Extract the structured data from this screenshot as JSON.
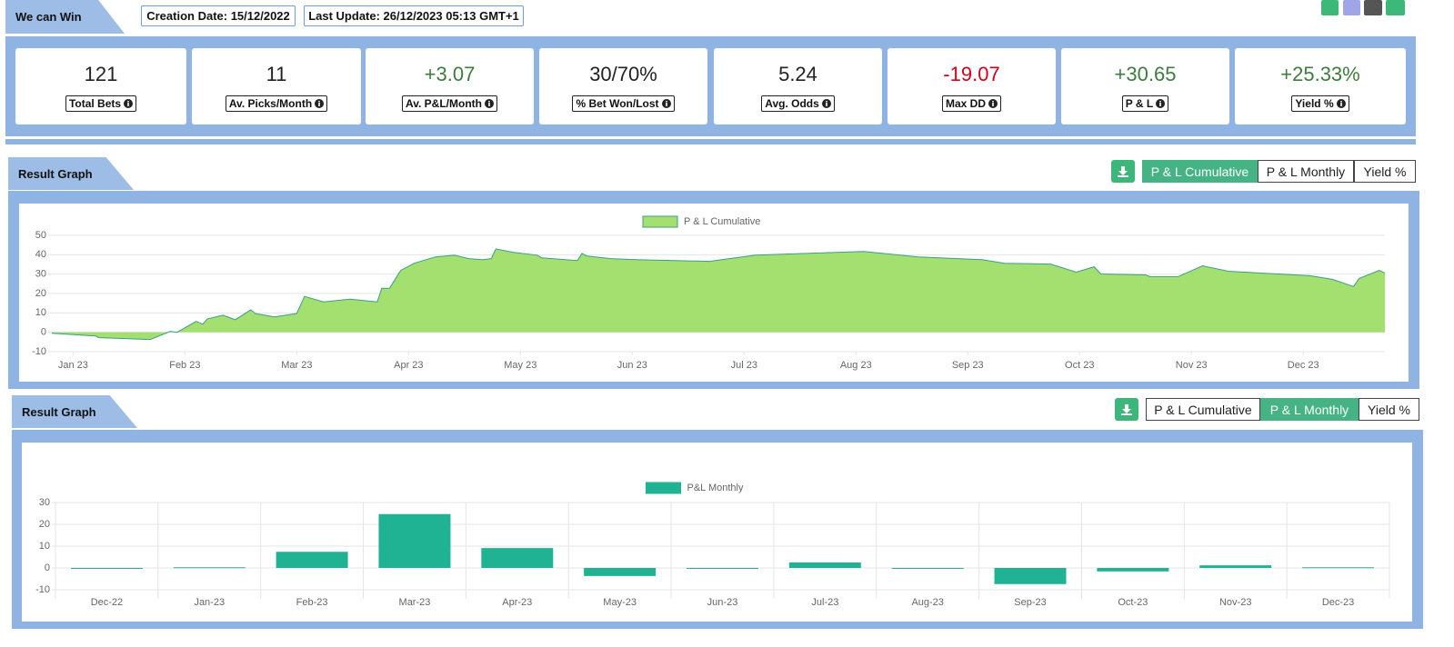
{
  "header": {
    "title": "We can Win",
    "creation_date": "Creation Date: 15/12/2022",
    "last_update": "Last Update: 26/12/2023 05:13 GMT+1"
  },
  "stats": [
    {
      "value": "121",
      "label": "Total Bets",
      "color": "#222222"
    },
    {
      "value": "11",
      "label": "Av. Picks/Month",
      "color": "#222222"
    },
    {
      "value": "+3.07",
      "label": "Av. P&L/Month",
      "color": "#3d7d3d"
    },
    {
      "value": "30/70%",
      "label": "% Bet Won/Lost",
      "color": "#222222"
    },
    {
      "value": "5.24",
      "label": "Avg. Odds",
      "color": "#222222"
    },
    {
      "value": "-19.07",
      "label": "Max DD",
      "color": "#d0021b"
    },
    {
      "value": "+30.65",
      "label": "P & L",
      "color": "#3d7d3d"
    },
    {
      "value": "+25.33%",
      "label": "Yield %",
      "color": "#3d7d3d"
    }
  ],
  "chart_data": [
    {
      "type": "area",
      "section_title": "Result Graph",
      "buttons": [
        {
          "label": "P & L Cumulative",
          "active": true
        },
        {
          "label": "P & L Monthly",
          "active": false
        },
        {
          "label": "Yield %",
          "active": false
        }
      ],
      "x": [
        -0.19,
        0.2,
        0.23,
        0.69,
        0.87,
        0.93,
        1.1,
        1.16,
        1.2,
        1.34,
        1.45,
        1.59,
        1.63,
        1.8,
        2.0,
        2.07,
        2.24,
        2.48,
        2.72,
        2.76,
        2.83,
        2.93,
        3.05,
        3.24,
        3.41,
        3.54,
        3.66,
        3.74,
        3.78,
        3.94,
        4.15,
        4.19,
        4.51,
        4.55,
        4.59,
        4.81,
        5.04,
        5.69,
        6.1,
        7.07,
        7.56,
        8.13,
        8.33,
        8.74,
        8.97,
        9.13,
        9.19,
        9.59,
        9.63,
        9.88,
        10.1,
        10.33,
        11.06,
        11.26,
        11.45,
        11.5,
        11.68,
        11.73
      ],
      "series": [
        {
          "name": "P & L Cumulative",
          "color": "#a3e070",
          "line_color": "#3b9e8a",
          "values": [
            -0.5,
            -1.9,
            -2.8,
            -3.7,
            0.5,
            0,
            5.6,
            4.2,
            6.9,
            8.8,
            6.5,
            11.6,
            9.7,
            7.9,
            9.7,
            18.5,
            15.7,
            17.1,
            15.7,
            22.7,
            22.7,
            31.9,
            35.6,
            38.9,
            39.8,
            38,
            37.5,
            38,
            43,
            41.2,
            39.8,
            38.4,
            37,
            40.7,
            39.4,
            38,
            37.5,
            36.6,
            39.8,
            41.7,
            38.9,
            37.5,
            35.6,
            35.2,
            31,
            33.8,
            30.1,
            29.6,
            28.7,
            28.7,
            34.3,
            31.5,
            29.2,
            27.3,
            23.6,
            27.8,
            31.9,
            30.6
          ]
        }
      ],
      "xlim": [
        -0.19,
        11.73
      ],
      "xticks": [
        {
          "value": 0,
          "label": "Jan 23"
        },
        {
          "value": 1,
          "label": "Feb 23"
        },
        {
          "value": 2,
          "label": "Mar 23"
        },
        {
          "value": 3,
          "label": "Apr 23"
        },
        {
          "value": 4,
          "label": "May 23"
        },
        {
          "value": 5,
          "label": "Jun 23"
        },
        {
          "value": 6,
          "label": "Jul 23"
        },
        {
          "value": 7,
          "label": "Aug 23"
        },
        {
          "value": 8,
          "label": "Sep 23"
        },
        {
          "value": 9,
          "label": "Oct 23"
        },
        {
          "value": 10,
          "label": "Nov 23"
        },
        {
          "value": 11,
          "label": "Dec 23"
        }
      ],
      "ylim": [
        -10,
        50
      ],
      "yticks": [
        -10,
        0,
        10,
        20,
        30,
        40,
        50
      ],
      "grid": true
    },
    {
      "type": "bar",
      "section_title": "Result Graph",
      "buttons": [
        {
          "label": "P & L Cumulative",
          "active": false
        },
        {
          "label": "P & L Monthly",
          "active": true
        },
        {
          "label": "Yield %",
          "active": false
        }
      ],
      "categories": [
        "Dec-22",
        "Jan-23",
        "Feb-23",
        "Mar-23",
        "Apr-23",
        "May-23",
        "Jun-23",
        "Jul-23",
        "Aug-23",
        "Sep-23",
        "Oct-23",
        "Nov-23",
        "Dec-23"
      ],
      "series": [
        {
          "name": "P&L Monthly",
          "color": "#1fb394",
          "values": [
            -0.3,
            0.3,
            7.4,
            24.7,
            9.1,
            -3.7,
            -0.3,
            2.5,
            -0.3,
            -7.4,
            -1.6,
            1.2,
            0.3
          ]
        }
      ],
      "ylim": [
        -10,
        30
      ],
      "yticks": [
        -10,
        0,
        10,
        20,
        30
      ],
      "grid": true
    }
  ]
}
